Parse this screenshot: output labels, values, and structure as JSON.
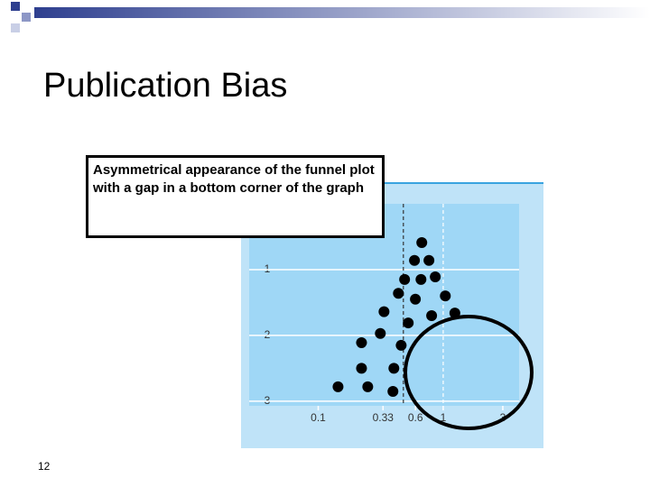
{
  "slide": {
    "title": "Publication Bias",
    "callout": "Asymmetrical appearance of the funnel plot with a gap in a bottom corner of the graph",
    "page_number": "12"
  },
  "chart_data": {
    "type": "scatter",
    "color": "#000000",
    "xscale": "log",
    "y_inverted": true,
    "grid": true,
    "x": [
      0.674,
      0.589,
      0.769,
      0.491,
      0.664,
      0.864,
      0.438,
      0.599,
      1.04,
      0.336,
      0.525,
      0.808,
      1.24,
      0.222,
      0.314,
      0.461,
      0.222,
      0.403,
      0.144,
      0.249,
      0.396
    ],
    "values": [
      0.59,
      0.86,
      0.86,
      1.15,
      1.15,
      1.11,
      1.36,
      1.45,
      1.4,
      1.64,
      1.81,
      1.7,
      1.66,
      2.11,
      1.97,
      2.15,
      2.5,
      2.5,
      2.78,
      2.78,
      2.85
    ],
    "xlim": [
      0.028,
      4.05
    ],
    "xticks": [
      0.1,
      0.33,
      0.6,
      1,
      3
    ],
    "ylim": [
      0,
      3.07
    ],
    "yticks": [
      1,
      2,
      3
    ],
    "reference_lines": [
      0.48,
      1
    ]
  }
}
